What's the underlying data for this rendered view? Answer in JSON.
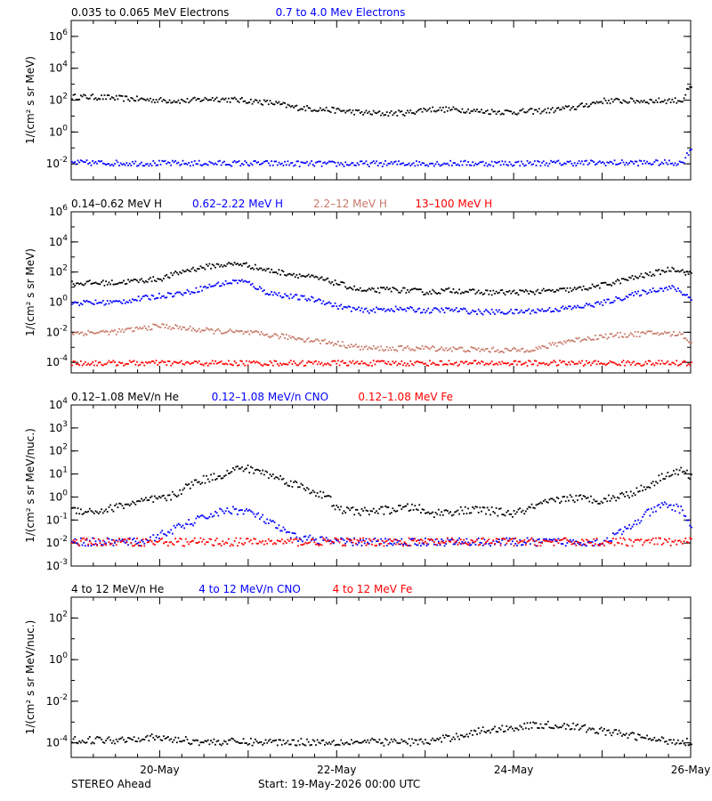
{
  "colors": {
    "black": "#000000",
    "blue": "#0000ff",
    "tan": "#c87868",
    "red": "#ff0000"
  },
  "footer": {
    "left": "STEREO Ahead",
    "center": "Start: 19-May-2026 00:00 UTC"
  },
  "x_axis": {
    "start": "2026-05-19 00:00",
    "end": "2026-05-26 00:00",
    "tick_labels": [
      "20-May",
      "22-May",
      "24-May",
      "26-May"
    ]
  },
  "chart_data": [
    {
      "type": "scatter",
      "scale": "log",
      "ylabel": "1/(cm² s sr MeV)",
      "ylim": [
        0.001,
        10000000
      ],
      "y_ticks": [
        {
          "value": 1000000,
          "label": "10^6"
        },
        {
          "value": 10000,
          "label": "10^4"
        },
        {
          "value": 100,
          "label": "10^2"
        },
        {
          "value": 1,
          "label": "10^0"
        },
        {
          "value": 0.01,
          "label": "10^-2"
        }
      ],
      "series": [
        {
          "name": "0.035 to 0.065 MeV Electrons",
          "color": "#000000",
          "x": [
            0,
            0.3,
            0.6,
            1,
            1.3,
            1.6,
            2,
            2.3,
            2.5,
            2.8,
            3,
            3.3,
            3.5,
            3.8,
            4,
            4.4,
            4.6,
            5,
            5.4,
            5.7,
            6,
            6.3,
            6.6,
            6.9,
            6.96,
            7
          ],
          "y": [
            180,
            170,
            140,
            110,
            100,
            140,
            100,
            70,
            40,
            30,
            25,
            18,
            16,
            18,
            30,
            28,
            22,
            20,
            25,
            40,
            100,
            100,
            100,
            110,
            500,
            600
          ]
        },
        {
          "name": "0.7 to 4.0 Mev Electrons",
          "color": "#0000ff",
          "x": [
            0,
            1,
            2,
            3,
            4,
            5,
            6,
            6.9,
            6.96,
            7
          ],
          "y": [
            0.013,
            0.012,
            0.012,
            0.011,
            0.012,
            0.012,
            0.013,
            0.013,
            0.05,
            0.12
          ]
        }
      ]
    },
    {
      "type": "scatter",
      "scale": "log",
      "ylabel": "1/(cm² s sr MeV)",
      "ylim": [
        2e-05,
        1000000
      ],
      "y_ticks": [
        {
          "value": 1000000,
          "label": "10^6"
        },
        {
          "value": 10000,
          "label": "10^4"
        },
        {
          "value": 100,
          "label": "10^2"
        },
        {
          "value": 1,
          "label": "10^0"
        },
        {
          "value": 0.01,
          "label": "10^-2"
        },
        {
          "value": 0.0001,
          "label": "10^-4"
        }
      ],
      "series": [
        {
          "name": "0.14–0.62 MeV H",
          "color": "#000000",
          "x": [
            0,
            0.5,
            1,
            1.3,
            1.6,
            1.9,
            2,
            2.2,
            2.5,
            2.8,
            3,
            3.3,
            3.6,
            3.9,
            4,
            4.3,
            4.6,
            5,
            5.4,
            5.7,
            6,
            6.3,
            6.6,
            6.8,
            7
          ],
          "y": [
            20,
            22,
            40,
            150,
            300,
            400,
            300,
            150,
            80,
            40,
            20,
            6,
            8,
            6,
            5,
            7,
            5,
            5,
            6,
            8,
            15,
            40,
            100,
            200,
            80
          ]
        },
        {
          "name": "0.62–2.22 MeV H",
          "color": "#0000ff",
          "x": [
            0,
            0.5,
            1,
            1.3,
            1.6,
            1.9,
            2,
            2.2,
            2.5,
            2.8,
            3,
            3.3,
            3.6,
            3.9,
            4,
            4.3,
            4.6,
            5,
            5.4,
            5.7,
            6,
            6.3,
            6.6,
            6.8,
            7
          ],
          "y": [
            1,
            1.1,
            3,
            5,
            15,
            30,
            20,
            5,
            2.5,
            1.5,
            0.6,
            0.3,
            0.4,
            0.35,
            0.3,
            0.35,
            0.25,
            0.25,
            0.35,
            0.5,
            1,
            3,
            8,
            10,
            2
          ]
        },
        {
          "name": "2.2–12 MeV H",
          "color": "#c87868",
          "x": [
            0,
            0.5,
            1,
            1.5,
            2,
            2.5,
            3,
            3.3,
            3.6,
            4,
            4.5,
            5,
            5.3,
            5.6,
            6,
            6.3,
            6.6,
            6.9,
            7
          ],
          "y": [
            0.01,
            0.012,
            0.03,
            0.015,
            0.01,
            0.005,
            0.002,
            0.001,
            0.0009,
            0.001,
            0.0008,
            0.0007,
            0.001,
            0.003,
            0.006,
            0.008,
            0.01,
            0.008,
            0.002
          ]
        },
        {
          "name": "13–100 MeV H",
          "color": "#ff0000",
          "x": [
            0,
            1,
            2,
            3,
            4,
            5,
            6,
            7
          ],
          "y": [
            0.0001,
            0.0001,
            0.0001,
            0.0001,
            0.0001,
            0.0001,
            0.0001,
            0.0001
          ]
        }
      ]
    },
    {
      "type": "scatter",
      "scale": "log",
      "ylabel": "1/(cm² s sr MeV/nuc.)",
      "ylim": [
        0.001,
        10000
      ],
      "y_ticks": [
        {
          "value": 10000,
          "label": "10^4"
        },
        {
          "value": 1000,
          "label": "10^3"
        },
        {
          "value": 100,
          "label": "10^2"
        },
        {
          "value": 10,
          "label": "10^1"
        },
        {
          "value": 1,
          "label": "10^0"
        },
        {
          "value": 0.1,
          "label": "10^-1"
        },
        {
          "value": 0.01,
          "label": "10^-2"
        },
        {
          "value": 0.001,
          "label": "10^-3"
        }
      ],
      "series": [
        {
          "name": "0.12–1.08 MeV/n He",
          "color": "#000000",
          "x": [
            0,
            0.3,
            0.6,
            0.9,
            1.1,
            1.4,
            1.7,
            1.9,
            2.1,
            2.3,
            2.6,
            2.9,
            3,
            3.3,
            3.6,
            3.9,
            4,
            4.3,
            4.6,
            5,
            5.3,
            5.6,
            6,
            6.3,
            6.5,
            6.7,
            6.9,
            7
          ],
          "y": [
            0.3,
            0.25,
            0.5,
            0.8,
            1,
            5,
            10,
            20,
            15,
            8,
            3,
            1,
            0.3,
            0.25,
            0.3,
            0.4,
            0.2,
            0.25,
            0.3,
            0.2,
            0.5,
            1,
            0.8,
            1.5,
            3,
            10,
            15,
            8
          ]
        },
        {
          "name": "0.12–1.08 MeV/n CNO",
          "color": "#0000ff",
          "x": [
            0,
            0.8,
            1.2,
            1.6,
            1.8,
            2,
            2.2,
            2.5,
            3,
            4,
            5,
            6,
            6.3,
            6.5,
            6.7,
            6.9,
            7
          ],
          "y": [
            0.012,
            0.012,
            0.05,
            0.2,
            0.3,
            0.25,
            0.1,
            0.02,
            0.012,
            0.012,
            0.012,
            0.012,
            0.05,
            0.2,
            0.5,
            0.3,
            0.05
          ]
        },
        {
          "name": "0.12–1.08 MeV Fe",
          "color": "#ff0000",
          "x": [
            0,
            1,
            2,
            3,
            4,
            5,
            6,
            7
          ],
          "y": [
            0.012,
            0.012,
            0.012,
            0.012,
            0.012,
            0.012,
            0.012,
            0.012
          ]
        }
      ]
    },
    {
      "type": "scatter",
      "scale": "log",
      "ylabel": "1/(cm² s sr MeV/nuc.)",
      "ylim": [
        2e-05,
        1000
      ],
      "y_ticks": [
        {
          "value": 100,
          "label": "10^2"
        },
        {
          "value": 1,
          "label": "10^0"
        },
        {
          "value": 0.01,
          "label": "10^-2"
        },
        {
          "value": 0.0001,
          "label": "10^-4"
        }
      ],
      "series": [
        {
          "name": "4 to 12 MeV/n He",
          "color": "#000000",
          "x": [
            0,
            0.5,
            0.8,
            1,
            1.5,
            2,
            2.5,
            3,
            3.5,
            4,
            4.3,
            4.6,
            5,
            5.3,
            5.6,
            6,
            6.3,
            6.6,
            7
          ],
          "y": [
            0.00015,
            0.00015,
            0.0002,
            0.00018,
            0.00012,
            0.00012,
            0.00012,
            0.00012,
            0.00012,
            0.00012,
            0.0002,
            0.0004,
            0.0006,
            0.0008,
            0.0007,
            0.0004,
            0.00025,
            0.00015,
            0.00012
          ]
        },
        {
          "name": "4 to 12 MeV/n CNO",
          "color": "#0000ff",
          "x": [],
          "y": []
        },
        {
          "name": "4 to 12 MeV Fe",
          "color": "#ff0000",
          "x": [],
          "y": []
        }
      ]
    }
  ]
}
